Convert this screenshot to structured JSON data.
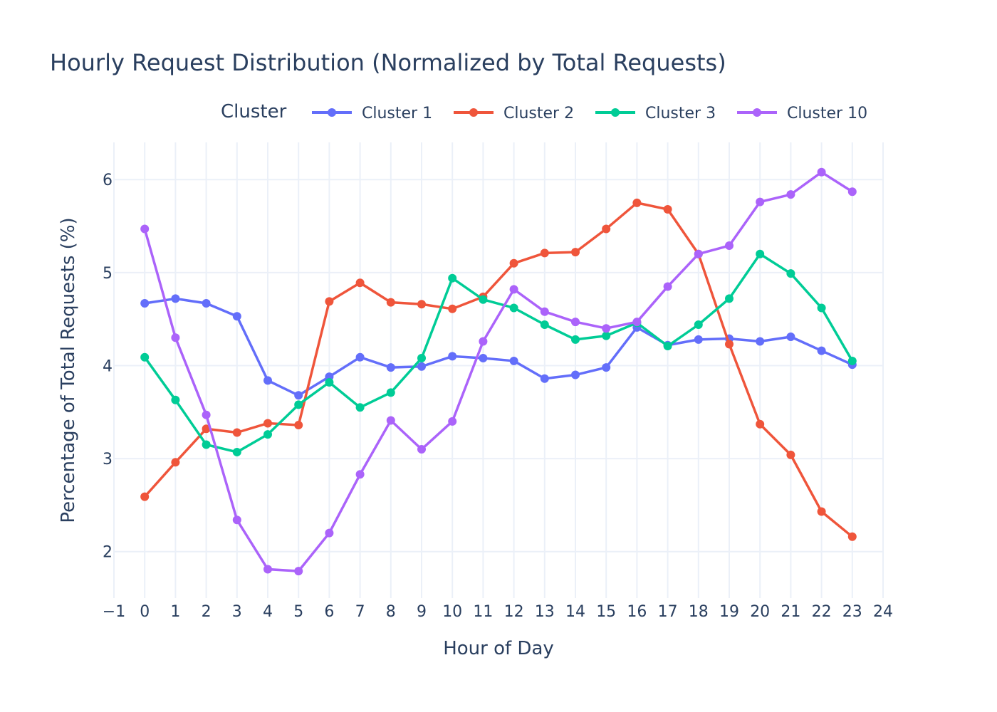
{
  "chart_data": {
    "type": "line",
    "title": "Hourly Request Distribution (Normalized by Total Requests)",
    "xlabel": "Hour of Day",
    "ylabel": "Percentage of Total Requests (%)",
    "legend_title": "Cluster",
    "legend_position": "top",
    "grid": true,
    "xlim": [
      -1,
      24
    ],
    "ylim": [
      1.5,
      6.4
    ],
    "x_ticks": [
      -1,
      0,
      1,
      2,
      3,
      4,
      5,
      6,
      7,
      8,
      9,
      10,
      11,
      12,
      13,
      14,
      15,
      16,
      17,
      18,
      19,
      20,
      21,
      22,
      23,
      24
    ],
    "x_tick_labels": [
      "−1",
      "0",
      "1",
      "2",
      "3",
      "4",
      "5",
      "6",
      "7",
      "8",
      "9",
      "10",
      "11",
      "12",
      "13",
      "14",
      "15",
      "16",
      "17",
      "18",
      "19",
      "20",
      "21",
      "22",
      "23",
      "24"
    ],
    "y_ticks": [
      2,
      3,
      4,
      5,
      6
    ],
    "y_tick_labels": [
      "2",
      "3",
      "4",
      "5",
      "6"
    ],
    "x": [
      0,
      1,
      2,
      3,
      4,
      5,
      6,
      7,
      8,
      9,
      10,
      11,
      12,
      13,
      14,
      15,
      16,
      17,
      18,
      19,
      20,
      21,
      22,
      23
    ],
    "series": [
      {
        "name": "Cluster 1",
        "color": "#636efa",
        "values": [
          4.67,
          4.72,
          4.67,
          4.53,
          3.84,
          3.68,
          3.88,
          4.09,
          3.98,
          3.99,
          4.1,
          4.08,
          4.05,
          3.86,
          3.9,
          3.98,
          4.41,
          4.22,
          4.28,
          4.29,
          4.26,
          4.31,
          4.16,
          4.01
        ]
      },
      {
        "name": "Cluster 2",
        "color": "#ef553b",
        "values": [
          2.59,
          2.96,
          3.32,
          3.28,
          3.38,
          3.36,
          4.69,
          4.89,
          4.68,
          4.66,
          4.61,
          4.74,
          5.1,
          5.21,
          5.22,
          5.47,
          5.75,
          5.68,
          5.2,
          4.23,
          3.37,
          3.04,
          2.43,
          2.16
        ]
      },
      {
        "name": "Cluster 3",
        "color": "#00cc96",
        "values": [
          4.09,
          3.63,
          3.15,
          3.07,
          3.26,
          3.58,
          3.82,
          3.55,
          3.71,
          4.08,
          4.94,
          4.71,
          4.62,
          4.44,
          4.28,
          4.32,
          4.46,
          4.21,
          4.44,
          4.72,
          5.2,
          4.99,
          4.62,
          4.05
        ]
      },
      {
        "name": "Cluster 10",
        "color": "#ab63fa",
        "values": [
          5.47,
          4.3,
          3.47,
          2.34,
          1.81,
          1.79,
          2.2,
          2.83,
          3.41,
          3.1,
          3.4,
          4.26,
          4.82,
          4.58,
          4.47,
          4.4,
          4.47,
          4.85,
          5.2,
          5.29,
          5.76,
          5.84,
          6.08,
          5.87
        ]
      }
    ]
  }
}
